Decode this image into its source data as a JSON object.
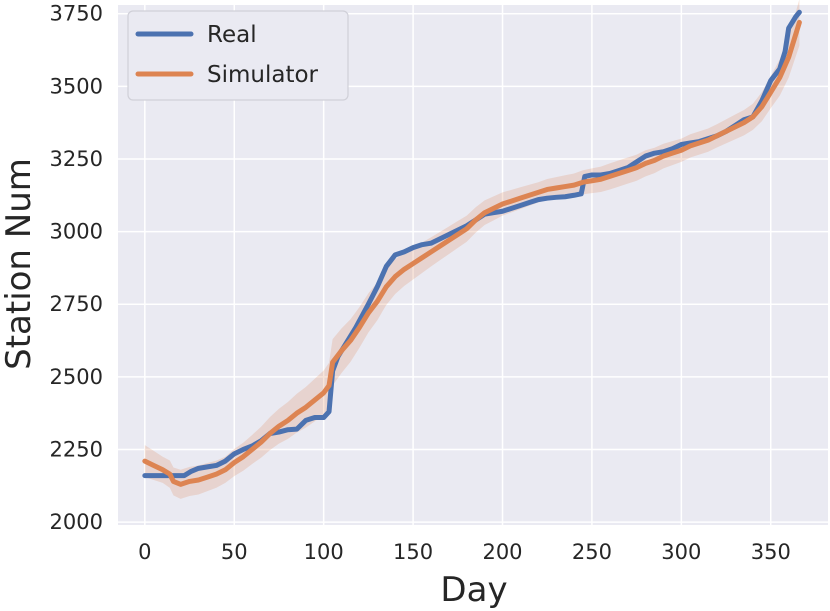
{
  "chart_data": {
    "type": "line",
    "title": "",
    "xlabel": "Day",
    "ylabel": "Station Num",
    "xlim": [
      -15,
      382
    ],
    "ylim": [
      1990,
      3780
    ],
    "xticks": [
      0,
      50,
      100,
      150,
      200,
      250,
      300,
      350
    ],
    "yticks": [
      2000,
      2250,
      2500,
      2750,
      3000,
      3250,
      3500,
      3750
    ],
    "grid": true,
    "legend_position": "top-left",
    "colors": {
      "background": "#eaeaf2",
      "grid": "#ffffff",
      "real": "#4c72b0",
      "simulator": "#dd8452",
      "band": "#dd8452"
    },
    "series": [
      {
        "name": "Real",
        "x": [
          0,
          5,
          10,
          14,
          18,
          22,
          26,
          30,
          35,
          40,
          45,
          50,
          55,
          60,
          65,
          70,
          75,
          80,
          85,
          90,
          95,
          100,
          103,
          105,
          108,
          112,
          118,
          125,
          130,
          135,
          140,
          145,
          150,
          155,
          160,
          165,
          170,
          175,
          180,
          185,
          190,
          195,
          200,
          205,
          210,
          215,
          220,
          225,
          230,
          235,
          240,
          244,
          246,
          250,
          255,
          260,
          265,
          270,
          275,
          280,
          285,
          290,
          295,
          300,
          305,
          310,
          315,
          320,
          325,
          330,
          335,
          340,
          345,
          350,
          355,
          358,
          360,
          362,
          364,
          366
        ],
        "y": [
          2160,
          2160,
          2160,
          2160,
          2160,
          2160,
          2175,
          2185,
          2190,
          2195,
          2210,
          2235,
          2250,
          2262,
          2280,
          2305,
          2310,
          2318,
          2320,
          2350,
          2360,
          2360,
          2380,
          2520,
          2570,
          2610,
          2670,
          2750,
          2810,
          2880,
          2920,
          2930,
          2945,
          2955,
          2960,
          2975,
          2990,
          3005,
          3020,
          3040,
          3060,
          3065,
          3070,
          3080,
          3090,
          3100,
          3110,
          3115,
          3118,
          3120,
          3125,
          3130,
          3190,
          3195,
          3195,
          3200,
          3210,
          3220,
          3240,
          3260,
          3270,
          3275,
          3285,
          3300,
          3305,
          3310,
          3320,
          3330,
          3345,
          3365,
          3385,
          3395,
          3450,
          3520,
          3560,
          3620,
          3700,
          3720,
          3740,
          3755
        ]
      },
      {
        "name": "Simulator",
        "x": [
          0,
          5,
          10,
          14,
          16,
          20,
          25,
          30,
          35,
          40,
          45,
          50,
          55,
          60,
          65,
          70,
          75,
          80,
          85,
          90,
          95,
          100,
          103,
          105,
          110,
          115,
          120,
          125,
          130,
          135,
          140,
          145,
          150,
          155,
          160,
          165,
          170,
          175,
          180,
          185,
          190,
          195,
          200,
          205,
          210,
          215,
          220,
          225,
          230,
          235,
          240,
          245,
          250,
          255,
          260,
          265,
          270,
          275,
          280,
          285,
          290,
          295,
          300,
          305,
          310,
          315,
          320,
          325,
          330,
          335,
          340,
          345,
          350,
          355,
          360,
          363,
          366
        ],
        "y": [
          2210,
          2195,
          2180,
          2165,
          2140,
          2130,
          2140,
          2145,
          2155,
          2165,
          2180,
          2205,
          2225,
          2250,
          2275,
          2305,
          2330,
          2350,
          2375,
          2395,
          2420,
          2445,
          2470,
          2550,
          2590,
          2625,
          2670,
          2720,
          2760,
          2810,
          2845,
          2870,
          2890,
          2910,
          2930,
          2950,
          2970,
          2990,
          3010,
          3040,
          3065,
          3080,
          3095,
          3105,
          3115,
          3125,
          3135,
          3145,
          3150,
          3155,
          3160,
          3170,
          3175,
          3180,
          3190,
          3200,
          3210,
          3220,
          3235,
          3245,
          3260,
          3270,
          3280,
          3295,
          3305,
          3315,
          3330,
          3345,
          3360,
          3375,
          3395,
          3430,
          3480,
          3530,
          3600,
          3660,
          3720
        ]
      }
    ],
    "band": {
      "x": [
        0,
        10,
        20,
        30,
        45,
        60,
        75,
        90,
        105,
        120,
        140,
        160,
        180,
        200,
        220,
        240,
        260,
        280,
        300,
        320,
        340,
        350,
        360,
        366
      ],
      "halfwidth": [
        55,
        45,
        50,
        50,
        45,
        50,
        60,
        70,
        80,
        70,
        60,
        50,
        45,
        40,
        35,
        40,
        45,
        45,
        40,
        40,
        45,
        55,
        70,
        80
      ]
    },
    "legend": [
      "Real",
      "Simulator"
    ]
  }
}
